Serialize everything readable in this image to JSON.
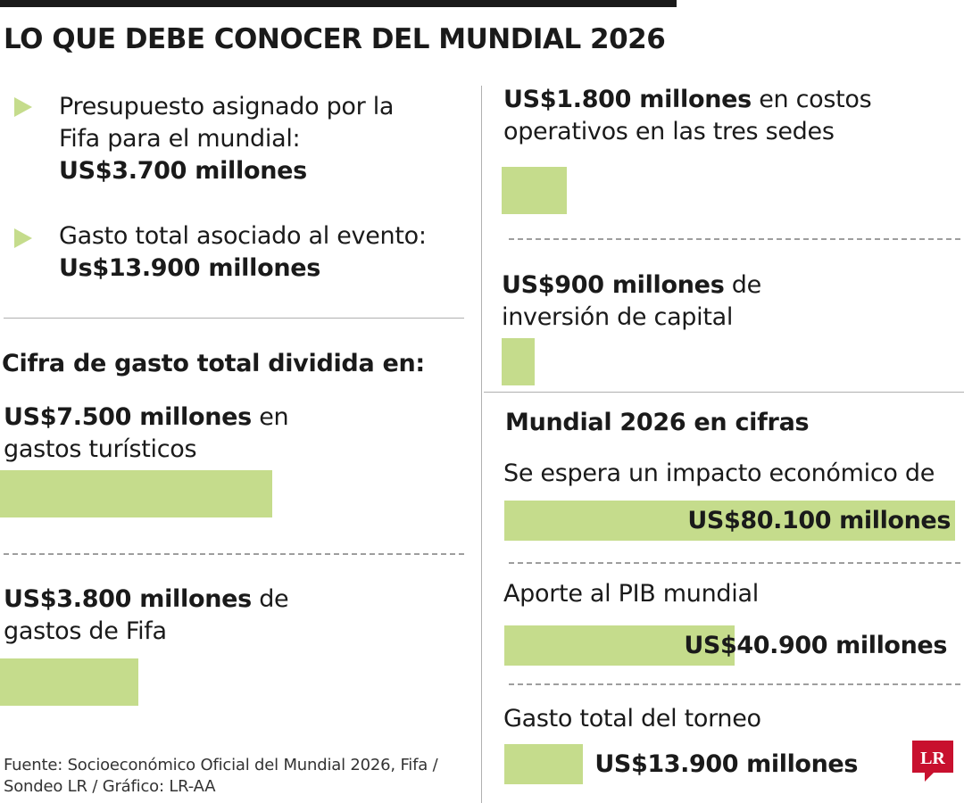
{
  "title": "LO QUE DEBE CONOCER DEL MUNDIAL 2026",
  "bullets": [
    {
      "text_lines": [
        "Presupuesto asignado por la",
        "Fifa para el mundial:"
      ],
      "value": "US$3.700 millones"
    },
    {
      "text_lines": [
        "Gasto total asociado al evento:"
      ],
      "value": "Us$13.900 millones"
    }
  ],
  "breakdown_title": "Cifra de gasto total dividida en:",
  "breakdown_items": [
    {
      "value": "US$7.500 millones",
      "line1_rest": " en",
      "line2": "gastos turísticos"
    },
    {
      "value": "US$3.800 millones",
      "line1_rest": " de",
      "line2": "gastos de Fifa"
    },
    {
      "value": "US$1.800 millones",
      "line1_rest": " en costos",
      "line2": "operativos en las tres sedes"
    },
    {
      "value": "US$900 millones",
      "line1_rest": " de",
      "line2": "inversión de capital"
    }
  ],
  "figures_title": "Mundial 2026 en cifras",
  "figures_items": [
    {
      "label": "Se espera un impacto económico de",
      "value": "US$80.100 millones"
    },
    {
      "label": "Aporte al PIB mundial",
      "value": "US$40.900 millones"
    },
    {
      "label": "Gasto total del torneo",
      "value": "US$13.900 millones"
    }
  ],
  "source": "Fuente: Socioeconómico Oficial del Mundial 2026, Fifa / Sondeo LR / Gráfico: LR-AA",
  "logo_text": "LR",
  "colors": {
    "bar": "#c5dc8c",
    "text": "#1a1a1a",
    "logo": "#c8102e",
    "rule": "#b0b0b0"
  },
  "chart_data": [
    {
      "type": "bar",
      "title": "Cifra de gasto total dividida en:",
      "categories": [
        "gastos turísticos",
        "gastos de Fifa",
        "costos operativos en las tres sedes",
        "inversión de capital"
      ],
      "values": [
        7500,
        3800,
        1800,
        900
      ]
    },
    {
      "type": "bar",
      "title": "Mundial 2026 en cifras",
      "categories": [
        "Se espera un impacto económico de",
        "Aporte al PIB mundial",
        "Gasto total del torneo"
      ],
      "values": [
        80100,
        40900,
        13900
      ]
    }
  ]
}
